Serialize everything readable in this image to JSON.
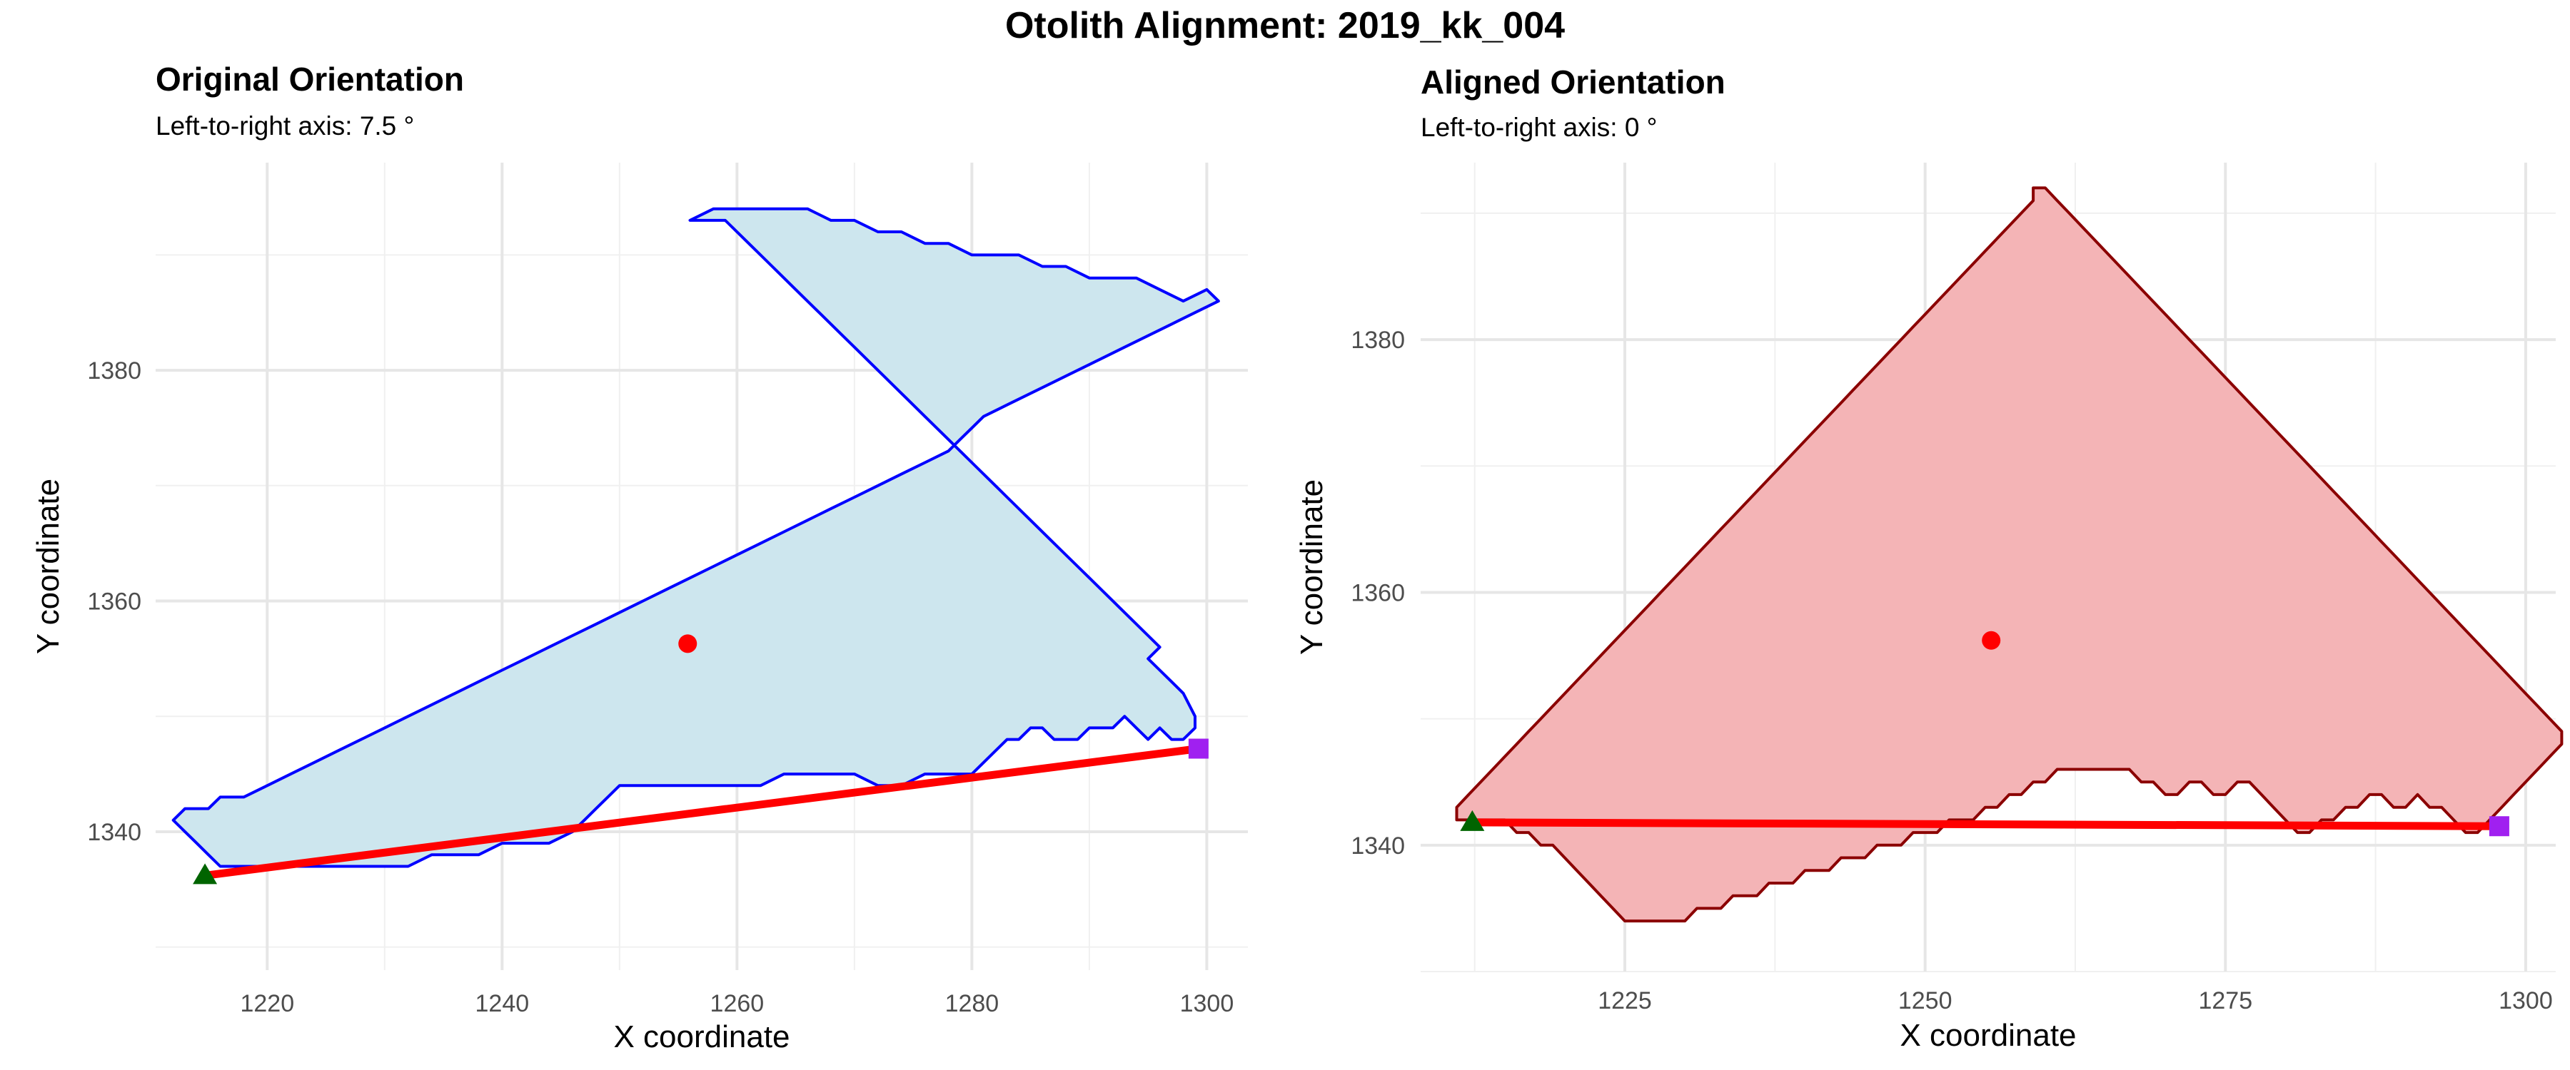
{
  "title": "Otolith Alignment: 2019_kk_004",
  "chart_data": [
    {
      "type": "polygon",
      "title": "Original Orientation",
      "subtitle": "Left-to-right axis: 7.5 °",
      "xlabel": "X coordinate",
      "ylabel": "Y coordinate",
      "xlim": [
        1210.5,
        1303.5
      ],
      "ylim": [
        1328,
        1398
      ],
      "xticks": [
        1220,
        1240,
        1260,
        1280,
        1300
      ],
      "yticks": [
        1340,
        1360,
        1380
      ],
      "grid": true,
      "colors": {
        "fill": "#cde6ee",
        "outline": "#0000ff",
        "axis_line": "#ff0000",
        "centroid": "#ff0000",
        "left_point": "#006400",
        "right_point": "#a020f0"
      },
      "outline": [
        [
          1256,
          1393
        ],
        [
          1259,
          1393
        ],
        [
          1261,
          1391
        ],
        [
          1263,
          1389
        ],
        [
          1265,
          1387
        ],
        [
          1267,
          1385
        ],
        [
          1269,
          1383
        ],
        [
          1270,
          1382
        ],
        [
          1272,
          1380
        ],
        [
          1274,
          1378
        ],
        [
          1276,
          1376
        ],
        [
          1278,
          1374
        ],
        [
          1280,
          1372
        ],
        [
          1282,
          1370
        ],
        [
          1283,
          1369
        ],
        [
          1285,
          1367
        ],
        [
          1287,
          1365
        ],
        [
          1289,
          1363
        ],
        [
          1291,
          1361
        ],
        [
          1293,
          1359
        ],
        [
          1295,
          1357
        ],
        [
          1296,
          1356
        ],
        [
          1295,
          1355
        ],
        [
          1296,
          1354
        ],
        [
          1297,
          1353
        ],
        [
          1298,
          1352
        ],
        [
          1299,
          1350
        ],
        [
          1299,
          1349
        ],
        [
          1298,
          1348
        ],
        [
          1297,
          1348
        ],
        [
          1296,
          1349
        ],
        [
          1295,
          1348
        ],
        [
          1294,
          1349
        ],
        [
          1293,
          1350
        ],
        [
          1292,
          1349
        ],
        [
          1291,
          1349
        ],
        [
          1290,
          1349
        ],
        [
          1289,
          1348
        ],
        [
          1288,
          1348
        ],
        [
          1287,
          1348
        ],
        [
          1286,
          1349
        ],
        [
          1285,
          1349
        ],
        [
          1284,
          1348
        ],
        [
          1283,
          1348
        ],
        [
          1282,
          1347
        ],
        [
          1281,
          1346
        ],
        [
          1280,
          1345
        ],
        [
          1278,
          1345
        ],
        [
          1276,
          1345
        ],
        [
          1274,
          1344
        ],
        [
          1272,
          1344
        ],
        [
          1270,
          1345
        ],
        [
          1268,
          1345
        ],
        [
          1266,
          1345
        ],
        [
          1264,
          1345
        ],
        [
          1262,
          1344
        ],
        [
          1260,
          1344
        ],
        [
          1258,
          1344
        ],
        [
          1256,
          1344
        ],
        [
          1253,
          1344
        ],
        [
          1251,
          1344
        ],
        [
          1250,
          1344
        ],
        [
          1249,
          1343
        ],
        [
          1248,
          1342
        ],
        [
          1247,
          1341
        ],
        [
          1246,
          1340
        ],
        [
          1244,
          1339
        ],
        [
          1242,
          1339
        ],
        [
          1240,
          1339
        ],
        [
          1238,
          1338
        ],
        [
          1236,
          1338
        ],
        [
          1234,
          1338
        ],
        [
          1232,
          1337
        ],
        [
          1230,
          1337
        ],
        [
          1228,
          1337
        ],
        [
          1226,
          1337
        ],
        [
          1224,
          1337
        ],
        [
          1222,
          1337
        ],
        [
          1220,
          1337
        ],
        [
          1218,
          1337
        ],
        [
          1216,
          1337
        ],
        [
          1215,
          1338
        ],
        [
          1214,
          1339
        ],
        [
          1213,
          1340
        ],
        [
          1212,
          1341
        ],
        [
          1213,
          1342
        ],
        [
          1215,
          1342
        ],
        [
          1216,
          1343
        ],
        [
          1218,
          1343
        ],
        [
          1220,
          1344
        ],
        [
          1222,
          1345
        ],
        [
          1224,
          1346
        ],
        [
          1226,
          1347
        ],
        [
          1228,
          1348
        ],
        [
          1230,
          1349
        ],
        [
          1232,
          1350
        ],
        [
          1234,
          1351
        ],
        [
          1236,
          1352
        ],
        [
          1238,
          1353
        ],
        [
          1240,
          1354
        ],
        [
          1242,
          1355
        ],
        [
          1244,
          1356
        ],
        [
          1246,
          1357
        ],
        [
          1248,
          1358
        ],
        [
          1250,
          1359
        ],
        [
          1252,
          1360
        ],
        [
          1254,
          1361
        ],
        [
          1256,
          1362
        ],
        [
          1258,
          1363
        ],
        [
          1260,
          1364
        ],
        [
          1262,
          1365
        ],
        [
          1264,
          1366
        ],
        [
          1266,
          1367
        ],
        [
          1268,
          1368
        ],
        [
          1270,
          1369
        ],
        [
          1272,
          1370
        ],
        [
          1274,
          1371
        ],
        [
          1276,
          1372
        ],
        [
          1278,
          1373
        ],
        [
          1279,
          1374
        ],
        [
          1280,
          1375
        ],
        [
          1281,
          1376
        ],
        [
          1283,
          1377
        ],
        [
          1285,
          1378
        ],
        [
          1287,
          1379
        ],
        [
          1289,
          1380
        ],
        [
          1291,
          1381
        ],
        [
          1293,
          1382
        ],
        [
          1295,
          1383
        ],
        [
          1297,
          1384
        ],
        [
          1299,
          1385
        ],
        [
          1301,
          1386
        ],
        [
          1300,
          1387
        ],
        [
          1298,
          1386
        ],
        [
          1296,
          1387
        ],
        [
          1294,
          1388
        ],
        [
          1292,
          1388
        ],
        [
          1290,
          1388
        ],
        [
          1288,
          1389
        ],
        [
          1286,
          1389
        ],
        [
          1284,
          1390
        ],
        [
          1282,
          1390
        ],
        [
          1280,
          1390
        ],
        [
          1278,
          1391
        ],
        [
          1276,
          1391
        ],
        [
          1274,
          1392
        ],
        [
          1272,
          1392
        ],
        [
          1270,
          1393
        ],
        [
          1268,
          1393
        ],
        [
          1266,
          1394
        ],
        [
          1264,
          1394
        ],
        [
          1262,
          1394
        ],
        [
          1260,
          1394
        ],
        [
          1258,
          1394
        ]
      ],
      "centroid": [
        1255.8,
        1356.3
      ],
      "left_point": [
        1214.7,
        1336.2
      ],
      "right_point": [
        1299.3,
        1347.2
      ]
    },
    {
      "type": "polygon",
      "title": "Aligned Orientation",
      "subtitle": "Left-to-right axis: 0 °",
      "xlabel": "X coordinate",
      "ylabel": "Y coordinate",
      "xlim": [
        1208,
        1302.5
      ],
      "ylim": [
        1330,
        1394
      ],
      "xticks": [
        1225,
        1250,
        1275,
        1300
      ],
      "yticks": [
        1340,
        1360,
        1380
      ],
      "grid": true,
      "colors": {
        "fill": "#f4b4b6",
        "outline": "#8b0000",
        "axis_line": "#ff0000",
        "centroid": "#ff0000",
        "left_point": "#006400",
        "right_point": "#a020f0"
      },
      "outline": [
        [
          1259,
          1392
        ],
        [
          1260,
          1392
        ],
        [
          1261,
          1391
        ],
        [
          1262,
          1390
        ],
        [
          1263,
          1389
        ],
        [
          1265,
          1387
        ],
        [
          1267,
          1385
        ],
        [
          1268,
          1384
        ],
        [
          1269,
          1383
        ],
        [
          1270,
          1382
        ],
        [
          1272,
          1380
        ],
        [
          1273,
          1379
        ],
        [
          1274,
          1378
        ],
        [
          1275,
          1377
        ],
        [
          1276,
          1376
        ],
        [
          1277,
          1375
        ],
        [
          1278,
          1374
        ],
        [
          1279,
          1373
        ],
        [
          1280,
          1372
        ],
        [
          1281,
          1371
        ],
        [
          1282,
          1370
        ],
        [
          1283,
          1369
        ],
        [
          1284,
          1368
        ],
        [
          1285,
          1367
        ],
        [
          1286,
          1366
        ],
        [
          1287,
          1365
        ],
        [
          1288,
          1364
        ],
        [
          1289,
          1363
        ],
        [
          1290,
          1362
        ],
        [
          1291,
          1361
        ],
        [
          1292,
          1360
        ],
        [
          1293,
          1359
        ],
        [
          1294,
          1358
        ],
        [
          1295,
          1357
        ],
        [
          1296,
          1356
        ],
        [
          1297,
          1355
        ],
        [
          1298,
          1354
        ],
        [
          1299,
          1353
        ],
        [
          1300,
          1352
        ],
        [
          1301,
          1351
        ],
        [
          1302,
          1350
        ],
        [
          1303,
          1349
        ],
        [
          1303,
          1348
        ],
        [
          1302,
          1347
        ],
        [
          1301,
          1346
        ],
        [
          1300,
          1345
        ],
        [
          1299,
          1344
        ],
        [
          1298,
          1343
        ],
        [
          1297,
          1342
        ],
        [
          1296,
          1341
        ],
        [
          1295,
          1341
        ],
        [
          1294,
          1342
        ],
        [
          1293,
          1343
        ],
        [
          1292,
          1343
        ],
        [
          1291,
          1344
        ],
        [
          1290,
          1343
        ],
        [
          1289,
          1343
        ],
        [
          1288,
          1344
        ],
        [
          1287,
          1344
        ],
        [
          1286,
          1343
        ],
        [
          1285,
          1343
        ],
        [
          1284,
          1342
        ],
        [
          1283,
          1342
        ],
        [
          1282,
          1341
        ],
        [
          1281,
          1341
        ],
        [
          1280,
          1342
        ],
        [
          1279,
          1343
        ],
        [
          1278,
          1344
        ],
        [
          1277,
          1345
        ],
        [
          1276,
          1345
        ],
        [
          1275,
          1344
        ],
        [
          1274,
          1344
        ],
        [
          1273,
          1345
        ],
        [
          1272,
          1345
        ],
        [
          1271,
          1344
        ],
        [
          1270,
          1344
        ],
        [
          1269,
          1345
        ],
        [
          1268,
          1345
        ],
        [
          1267,
          1346
        ],
        [
          1266,
          1346
        ],
        [
          1265,
          1346
        ],
        [
          1264,
          1346
        ],
        [
          1263,
          1346
        ],
        [
          1262,
          1346
        ],
        [
          1261,
          1346
        ],
        [
          1260,
          1345
        ],
        [
          1259,
          1345
        ],
        [
          1258,
          1344
        ],
        [
          1257,
          1344
        ],
        [
          1256,
          1343
        ],
        [
          1255,
          1343
        ],
        [
          1254,
          1342
        ],
        [
          1253,
          1342
        ],
        [
          1252,
          1342
        ],
        [
          1251,
          1341
        ],
        [
          1250,
          1341
        ],
        [
          1249,
          1341
        ],
        [
          1248,
          1340
        ],
        [
          1247,
          1340
        ],
        [
          1246,
          1340
        ],
        [
          1245,
          1339
        ],
        [
          1244,
          1339
        ],
        [
          1243,
          1339
        ],
        [
          1242,
          1338
        ],
        [
          1241,
          1338
        ],
        [
          1240,
          1338
        ],
        [
          1239,
          1337
        ],
        [
          1238,
          1337
        ],
        [
          1237,
          1337
        ],
        [
          1236,
          1336
        ],
        [
          1235,
          1336
        ],
        [
          1234,
          1336
        ],
        [
          1233,
          1335
        ],
        [
          1232,
          1335
        ],
        [
          1231,
          1335
        ],
        [
          1230,
          1334
        ],
        [
          1229,
          1334
        ],
        [
          1228,
          1334
        ],
        [
          1227,
          1334
        ],
        [
          1226,
          1334
        ],
        [
          1225,
          1334
        ],
        [
          1224,
          1335
        ],
        [
          1223,
          1336
        ],
        [
          1222,
          1337
        ],
        [
          1221,
          1338
        ],
        [
          1220,
          1339
        ],
        [
          1219,
          1340
        ],
        [
          1218,
          1340
        ],
        [
          1217,
          1341
        ],
        [
          1216,
          1341
        ],
        [
          1215,
          1342
        ],
        [
          1214,
          1342
        ],
        [
          1213,
          1342
        ],
        [
          1212,
          1342
        ],
        [
          1211,
          1342
        ],
        [
          1211,
          1343
        ],
        [
          1212,
          1344
        ],
        [
          1213,
          1345
        ],
        [
          1214,
          1346
        ],
        [
          1215,
          1347
        ],
        [
          1216,
          1348
        ],
        [
          1217,
          1349
        ],
        [
          1218,
          1350
        ],
        [
          1219,
          1351
        ],
        [
          1220,
          1352
        ],
        [
          1221,
          1353
        ],
        [
          1222,
          1354
        ],
        [
          1223,
          1355
        ],
        [
          1224,
          1356
        ],
        [
          1225,
          1357
        ],
        [
          1226,
          1358
        ],
        [
          1227,
          1359
        ],
        [
          1228,
          1360
        ],
        [
          1229,
          1361
        ],
        [
          1230,
          1362
        ],
        [
          1231,
          1363
        ],
        [
          1232,
          1364
        ],
        [
          1233,
          1365
        ],
        [
          1234,
          1366
        ],
        [
          1235,
          1367
        ],
        [
          1236,
          1368
        ],
        [
          1237,
          1369
        ],
        [
          1238,
          1370
        ],
        [
          1239,
          1371
        ],
        [
          1240,
          1372
        ],
        [
          1241,
          1373
        ],
        [
          1242,
          1374
        ],
        [
          1243,
          1375
        ],
        [
          1244,
          1376
        ],
        [
          1245,
          1377
        ],
        [
          1246,
          1378
        ],
        [
          1247,
          1379
        ],
        [
          1248,
          1380
        ],
        [
          1249,
          1381
        ],
        [
          1250,
          1382
        ],
        [
          1251,
          1383
        ],
        [
          1252,
          1384
        ],
        [
          1253,
          1385
        ],
        [
          1254,
          1386
        ],
        [
          1255,
          1387
        ],
        [
          1256,
          1388
        ],
        [
          1257,
          1389
        ],
        [
          1258,
          1390
        ],
        [
          1259,
          1391
        ]
      ],
      "centroid": [
        1255.5,
        1356.2
      ],
      "left_point": [
        1212.3,
        1341.8
      ],
      "right_point": [
        1297.8,
        1341.5
      ]
    }
  ]
}
